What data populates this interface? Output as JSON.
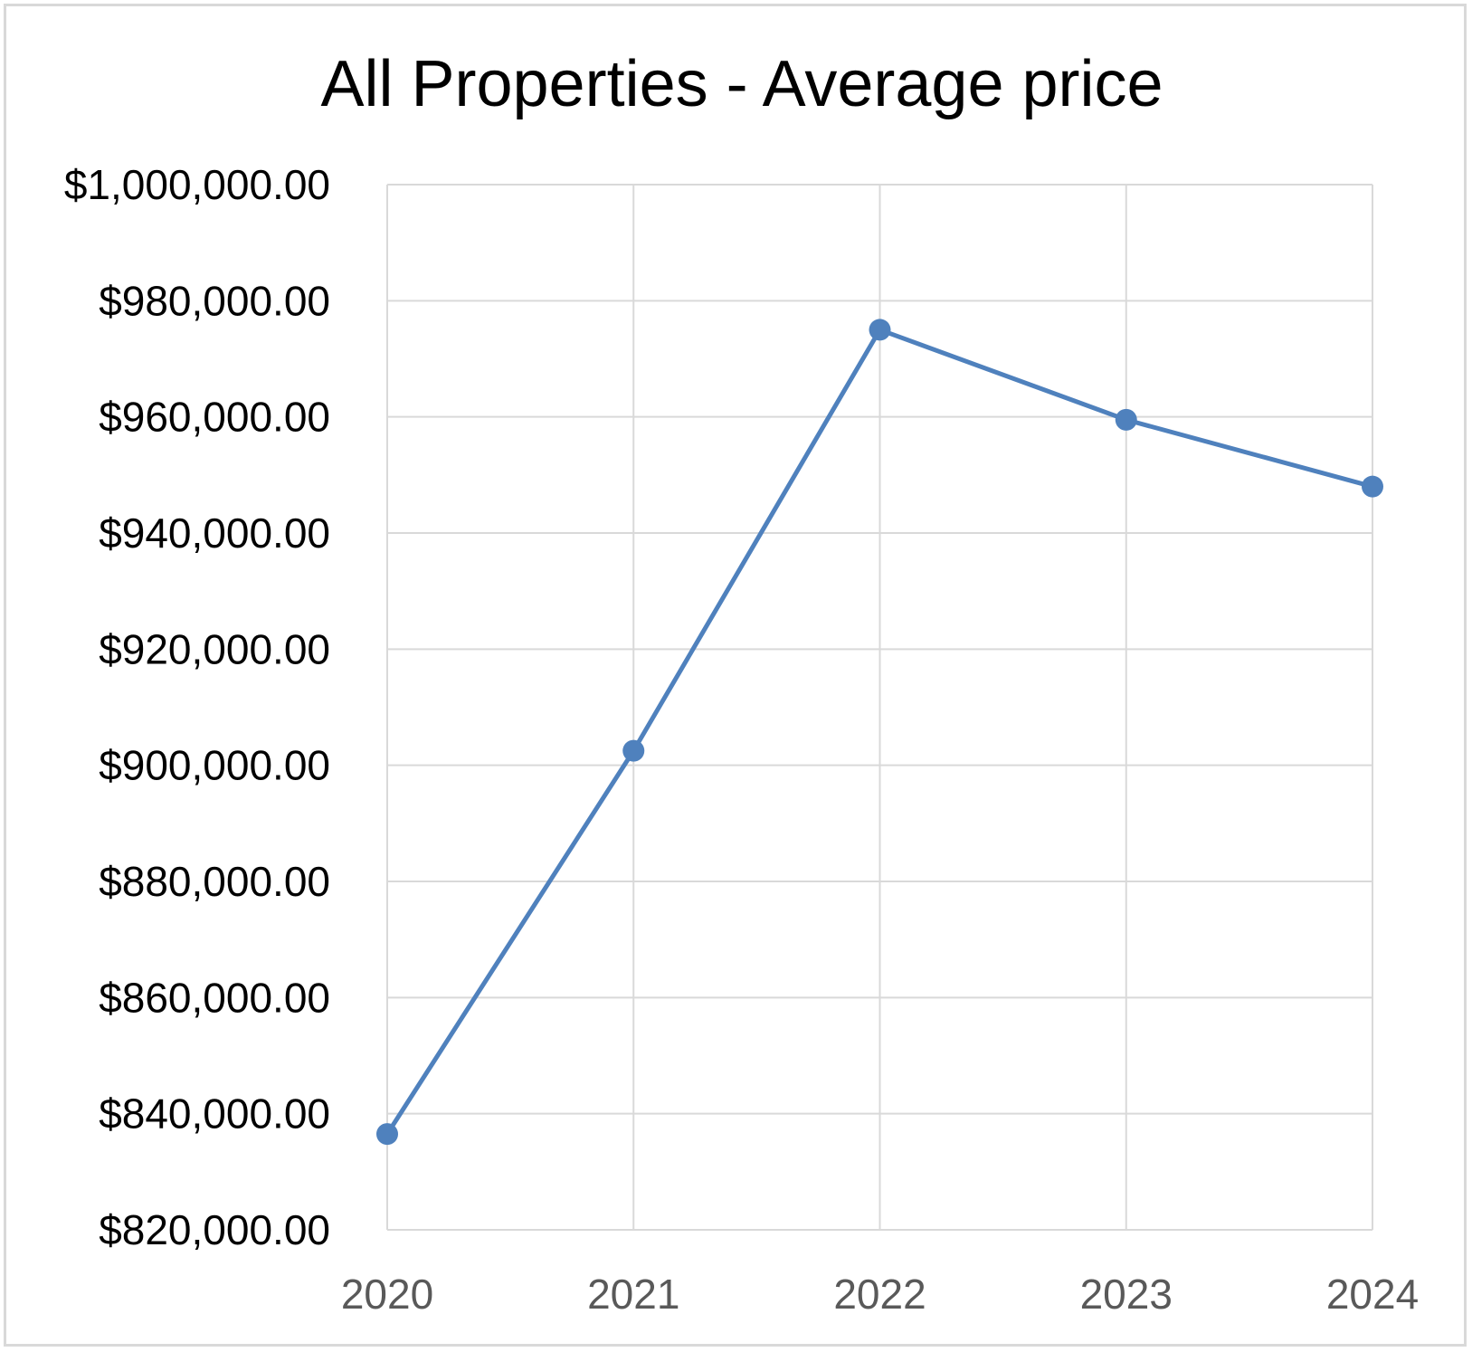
{
  "chart_data": {
    "type": "line",
    "title": "All Properties - Average price",
    "xlabel": "",
    "ylabel": "",
    "categories": [
      "2020",
      "2021",
      "2022",
      "2023",
      "2024"
    ],
    "series": [
      {
        "values": [
          836500,
          902500,
          975000,
          959500,
          948000
        ]
      }
    ],
    "ylim": [
      820000,
      1000000
    ],
    "yticks": [
      820000,
      840000,
      860000,
      880000,
      900000,
      920000,
      940000,
      960000,
      980000,
      1000000
    ],
    "ytick_labels": [
      "$820,000.00",
      "$840,000.00",
      "$860,000.00",
      "$880,000.00",
      "$900,000.00",
      "$920,000.00",
      "$940,000.00",
      "$960,000.00",
      "$980,000.00",
      "$1,000,000.00"
    ],
    "grid": true,
    "legend": "none",
    "colors": {
      "series": "#4F81BD",
      "grid": "#d9d9d9",
      "xtick_text": "#595959",
      "ytick_text": "#000000",
      "frame": "#d9d9d9"
    }
  }
}
